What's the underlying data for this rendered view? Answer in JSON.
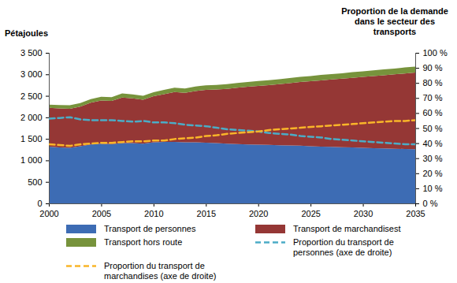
{
  "chart_data": {
    "type": "area",
    "y_label": "Pétajoules",
    "y2_label": "Proportion de la demande dans le secteur des transports",
    "stacked": true,
    "grid": false,
    "legend": "bottom",
    "x": [
      2000,
      2001,
      2002,
      2003,
      2004,
      2005,
      2006,
      2007,
      2008,
      2009,
      2010,
      2011,
      2012,
      2013,
      2014,
      2015,
      2016,
      2017,
      2018,
      2019,
      2020,
      2021,
      2022,
      2023,
      2024,
      2025,
      2026,
      2027,
      2028,
      2029,
      2030,
      2031,
      2032,
      2033,
      2034,
      2035
    ],
    "xlim": [
      2000,
      2035
    ],
    "xticks": [
      2000,
      2005,
      2010,
      2015,
      2020,
      2025,
      2030,
      2035
    ],
    "ylim": [
      0,
      3500
    ],
    "yticks": [
      0,
      500,
      {
        "value": 1000,
        "label": "1 000"
      },
      {
        "value": 1500,
        "label": "1 500"
      },
      {
        "value": 2000,
        "label": "2 000"
      },
      {
        "value": 2500,
        "label": "2 500"
      },
      {
        "value": 3000,
        "label": "3 000"
      },
      {
        "value": 3500,
        "label": "3 500"
      }
    ],
    "y2lim": [
      0,
      100
    ],
    "y2ticks": [
      {
        "value": 0,
        "label": "0 %"
      },
      {
        "value": 10,
        "label": "10 %"
      },
      {
        "value": 20,
        "label": "20 %"
      },
      {
        "value": 30,
        "label": "30 %"
      },
      {
        "value": 40,
        "label": "40 %"
      },
      {
        "value": 50,
        "label": "50 %"
      },
      {
        "value": 60,
        "label": "60 %"
      },
      {
        "value": 70,
        "label": "70 %"
      },
      {
        "value": 80,
        "label": "80 %"
      },
      {
        "value": 90,
        "label": "90 %"
      },
      {
        "value": 100,
        "label": "100 %"
      }
    ],
    "series": [
      {
        "name": "Transport de personnes",
        "color": "#3d6cb4",
        "type": "area",
        "values": [
          1320,
          1300,
          1290,
          1330,
          1370,
          1390,
          1380,
          1400,
          1400,
          1390,
          1420,
          1430,
          1430,
          1420,
          1420,
          1410,
          1400,
          1390,
          1380,
          1370,
          1365,
          1360,
          1350,
          1345,
          1340,
          1330,
          1320,
          1315,
          1305,
          1300,
          1290,
          1285,
          1280,
          1270,
          1265,
          1260
        ]
      },
      {
        "name": "Transport de marchandisest",
        "color": "#953735",
        "type": "area",
        "values": [
          900,
          910,
          910,
          920,
          970,
          1000,
          1000,
          1060,
          1040,
          1020,
          1070,
          1110,
          1160,
          1150,
          1190,
          1230,
          1250,
          1270,
          1310,
          1340,
          1365,
          1390,
          1420,
          1450,
          1480,
          1510,
          1540,
          1565,
          1595,
          1620,
          1650,
          1675,
          1700,
          1730,
          1755,
          1780
        ]
      },
      {
        "name": "Transport hors route",
        "color": "#77933c",
        "type": "area",
        "values": [
          75,
          75,
          80,
          80,
          85,
          90,
          90,
          95,
          95,
          90,
          95,
          100,
          100,
          100,
          105,
          105,
          105,
          110,
          110,
          110,
          115,
          115,
          115,
          120,
          120,
          120,
          125,
          125,
          125,
          130,
          130,
          130,
          135,
          135,
          140,
          140
        ]
      },
      {
        "name": "Proportion du transport de personnes (axe de droite)",
        "color": "#4bacc6",
        "type": "line",
        "line_style": "dashed",
        "axis": "y2",
        "values": [
          56.5,
          57,
          57.5,
          56,
          55.5,
          55.5,
          55.5,
          55,
          54.5,
          55,
          54,
          54,
          53.5,
          52.5,
          52,
          51.5,
          50.5,
          49.5,
          49,
          48.5,
          48,
          47,
          46.5,
          46,
          45,
          44.5,
          44,
          43,
          42.5,
          42,
          41.5,
          41,
          40.5,
          40,
          39.5,
          39.5
        ]
      },
      {
        "name": "Proportion du transport de marchandises (axe de droite)",
        "color": "#f9b529",
        "type": "line",
        "line_style": "dashed",
        "axis": "y2",
        "values": [
          39.5,
          39,
          38.5,
          39.5,
          40,
          40.5,
          40.5,
          41,
          41.5,
          41.5,
          42,
          42,
          43,
          43.5,
          44,
          45,
          45.5,
          46.5,
          47,
          47.5,
          48,
          49,
          49.5,
          50,
          50.5,
          51,
          51.5,
          52,
          52.5,
          53,
          53.5,
          54,
          54.5,
          55,
          55,
          55.5
        ]
      }
    ]
  }
}
